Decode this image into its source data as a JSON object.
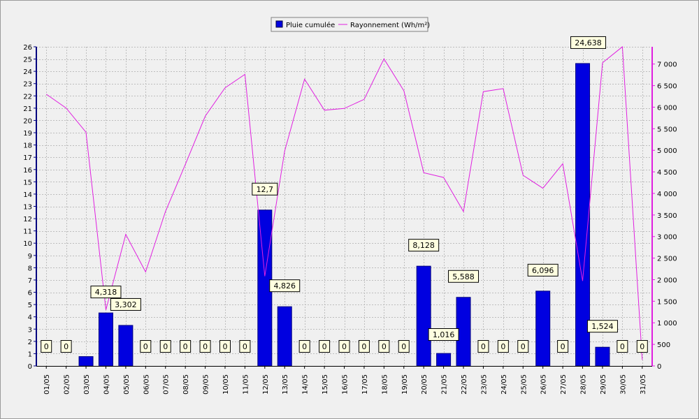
{
  "chart_data": {
    "type": "bar",
    "categories": [
      "01/05",
      "02/05",
      "03/05",
      "04/05",
      "05/05",
      "06/05",
      "07/05",
      "08/05",
      "09/05",
      "10/05",
      "11/05",
      "12/05",
      "13/05",
      "14/05",
      "15/05",
      "16/05",
      "17/05",
      "18/05",
      "19/05",
      "20/05",
      "21/05",
      "22/05",
      "23/05",
      "24/05",
      "25/05",
      "26/05",
      "27/05",
      "28/05",
      "29/05",
      "30/05",
      "31/05"
    ],
    "series": [
      {
        "name": "Pluie cumulée",
        "type": "bar",
        "axis": "left",
        "color": "#0000e0",
        "values": [
          0,
          0,
          0.762,
          4.318,
          3.302,
          0,
          0,
          0,
          0,
          0,
          0,
          12.7,
          4.826,
          0,
          0,
          0,
          0,
          0,
          0,
          8.128,
          1.016,
          5.588,
          0,
          0,
          0,
          6.096,
          0,
          24.638,
          1.524,
          0,
          0
        ],
        "labels": [
          "0",
          "0",
          "",
          "4,318",
          "3,302",
          "0",
          "0",
          "0",
          "0",
          "0",
          "0",
          "12,7",
          "4,826",
          "0",
          "0",
          "0",
          "0",
          "0",
          "0",
          "8,128",
          "1,016",
          "5,588",
          "0",
          "0",
          "0",
          "6,096",
          "0",
          "24,638",
          "1,524",
          "0",
          "0"
        ]
      },
      {
        "name": "Rayonnement (Wh/m²)",
        "type": "line",
        "axis": "right",
        "color": "#e020e0",
        "values": [
          6300,
          5980,
          5420,
          1300,
          3050,
          2180,
          3580,
          4670,
          5790,
          6450,
          6760,
          2080,
          4980,
          6650,
          5930,
          5970,
          6180,
          7120,
          6380,
          4480,
          4370,
          3580,
          6360,
          6430,
          4420,
          4120,
          4690,
          1970,
          7030,
          7400,
          140
        ]
      }
    ],
    "y_left": {
      "ylim": [
        0,
        26
      ],
      "ticks": [
        "0",
        "1",
        "2",
        "3",
        "4",
        "5",
        "6",
        "7",
        "8",
        "9",
        "10",
        "11",
        "12",
        "13",
        "14",
        "15",
        "16",
        "17",
        "18",
        "19",
        "20",
        "21",
        "22",
        "23",
        "24",
        "25",
        "26"
      ]
    },
    "y_right": {
      "ylim": [
        0,
        7400
      ],
      "ticks": [
        "0",
        "500",
        "1 000",
        "1 500",
        "2 000",
        "2 500",
        "3 000",
        "3 500",
        "4 000",
        "4 500",
        "5 000",
        "5 500",
        "6 000",
        "6 500",
        "7 000"
      ]
    },
    "grid": true,
    "legend_position": "top-center"
  }
}
